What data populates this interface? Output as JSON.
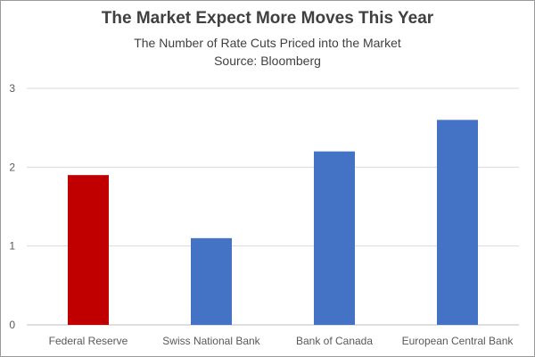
{
  "chart_data": {
    "type": "bar",
    "title": "The Market Expect More Moves This Year",
    "subtitle": "The Number of Rate Cuts Priced into the Market",
    "source": "Source: Bloomberg",
    "categories": [
      "Federal Reserve",
      "Swiss National Bank",
      "Bank of Canada",
      "European Central Bank"
    ],
    "values": [
      1.9,
      1.1,
      2.2,
      2.6
    ],
    "bar_colors": [
      "#c00000",
      "#4472c4",
      "#4472c4",
      "#4472c4"
    ],
    "ylim": [
      0,
      3
    ],
    "yticks": [
      0,
      1,
      2,
      3
    ],
    "grid": true,
    "legend": "none",
    "xlabel": "",
    "ylabel": ""
  }
}
